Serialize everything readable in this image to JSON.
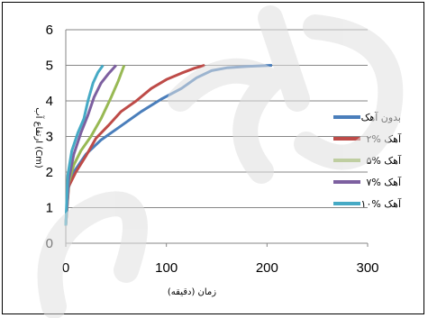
{
  "chart_data": {
    "type": "line",
    "xlabel": "زمان (دقيقه)",
    "ylabel": "ارتفاع آب (Cm)",
    "xlim": [
      0,
      300
    ],
    "ylim": [
      0,
      6
    ],
    "xticks": [
      "0",
      "100",
      "200",
      "300"
    ],
    "yticks": [
      "0",
      "1",
      "2",
      "3",
      "4",
      "5",
      "6"
    ],
    "grid": "horizontal",
    "legend_position": "right",
    "series": [
      {
        "name": "بدون آهک",
        "color": "#4a7ebb",
        "points": [
          [
            0,
            0.5
          ],
          [
            2,
            1.5
          ],
          [
            8,
            2
          ],
          [
            20,
            2.5
          ],
          [
            35,
            2.9
          ],
          [
            55,
            3.3
          ],
          [
            75,
            3.7
          ],
          [
            95,
            4.05
          ],
          [
            115,
            4.35
          ],
          [
            130,
            4.65
          ],
          [
            145,
            4.85
          ],
          [
            160,
            4.93
          ],
          [
            180,
            4.97
          ],
          [
            205,
            5.0
          ]
        ]
      },
      {
        "name": "۲% آهک",
        "color": "#be4b48",
        "points": [
          [
            0,
            0.5
          ],
          [
            3,
            1.6
          ],
          [
            10,
            2
          ],
          [
            20,
            2.45
          ],
          [
            30,
            2.95
          ],
          [
            42,
            3.3
          ],
          [
            55,
            3.7
          ],
          [
            70,
            4
          ],
          [
            85,
            4.35
          ],
          [
            100,
            4.6
          ],
          [
            115,
            4.78
          ],
          [
            128,
            4.92
          ],
          [
            138,
            5.0
          ]
        ]
      },
      {
        "name": "۵% آهک",
        "color": "#98b954",
        "points": [
          [
            0,
            0.5
          ],
          [
            3,
            1.7
          ],
          [
            8,
            2.2
          ],
          [
            15,
            2.6
          ],
          [
            25,
            3.0
          ],
          [
            35,
            3.5
          ],
          [
            45,
            4.1
          ],
          [
            52,
            4.55
          ],
          [
            58,
            5.0
          ]
        ]
      },
      {
        "name": "۷% آهک",
        "color": "#7d60a0",
        "points": [
          [
            0,
            0.5
          ],
          [
            3,
            1.8
          ],
          [
            8,
            2.5
          ],
          [
            15,
            3.1
          ],
          [
            22,
            3.6
          ],
          [
            28,
            4.1
          ],
          [
            35,
            4.5
          ],
          [
            42,
            4.75
          ],
          [
            50,
            5.0
          ]
        ]
      },
      {
        "name": "۱۰% آهک",
        "color": "#46aac5",
        "points": [
          [
            0,
            0.5
          ],
          [
            2,
            1.9
          ],
          [
            6,
            2.6
          ],
          [
            12,
            3.1
          ],
          [
            18,
            3.5
          ],
          [
            22,
            4.0
          ],
          [
            27,
            4.5
          ],
          [
            32,
            4.8
          ],
          [
            37,
            5.0
          ]
        ]
      }
    ]
  }
}
